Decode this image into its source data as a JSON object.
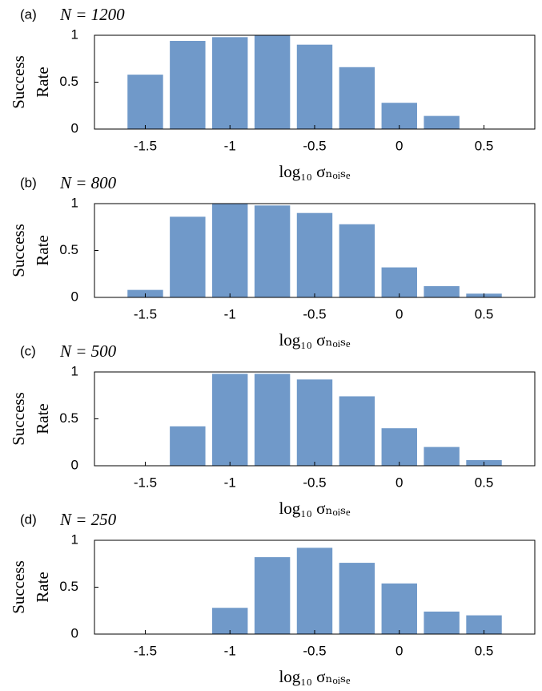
{
  "chart_data": [
    {
      "type": "bar",
      "panel_label": "(a)",
      "title": "N = 1200",
      "xlabel": "log₁₀ σₙₒᵢₛₑ",
      "ylabel": [
        "Success",
        "Rate"
      ],
      "x": [
        -1.5,
        -1.25,
        -1,
        -0.75,
        -0.5,
        -0.25,
        0,
        0.25,
        0.5
      ],
      "values": [
        0.58,
        0.94,
        0.98,
        1.0,
        0.9,
        0.66,
        0.28,
        0.14,
        0
      ],
      "color": "#7099c9",
      "xlim": [
        -1.8,
        0.8
      ],
      "xticks": [
        -1.5,
        -1,
        -0.5,
        0,
        0.5
      ],
      "ylim": [
        0,
        1
      ],
      "yticks": [
        0,
        0.5,
        1
      ]
    },
    {
      "type": "bar",
      "panel_label": "(b)",
      "title": "N = 800",
      "xlabel": "log₁₀ σₙₒᵢₛₑ",
      "ylabel": [
        "Success",
        "Rate"
      ],
      "x": [
        -1.5,
        -1.25,
        -1,
        -0.75,
        -0.5,
        -0.25,
        0,
        0.25,
        0.5
      ],
      "values": [
        0.08,
        0.86,
        1.0,
        0.98,
        0.9,
        0.78,
        0.32,
        0.12,
        0.04
      ],
      "color": "#7099c9",
      "xlim": [
        -1.8,
        0.8
      ],
      "xticks": [
        -1.5,
        -1,
        -0.5,
        0,
        0.5
      ],
      "ylim": [
        0,
        1
      ],
      "yticks": [
        0,
        0.5,
        1
      ]
    },
    {
      "type": "bar",
      "panel_label": "(c)",
      "title": "N = 500",
      "xlabel": "log₁₀ σₙₒᵢₛₑ",
      "ylabel": [
        "Success",
        "Rate"
      ],
      "x": [
        -1.5,
        -1.25,
        -1,
        -0.75,
        -0.5,
        -0.25,
        0,
        0.25,
        0.5
      ],
      "values": [
        0,
        0.42,
        0.98,
        0.98,
        0.92,
        0.74,
        0.4,
        0.2,
        0.06
      ],
      "color": "#7099c9",
      "xlim": [
        -1.8,
        0.8
      ],
      "xticks": [
        -1.5,
        -1,
        -0.5,
        0,
        0.5
      ],
      "ylim": [
        0,
        1
      ],
      "yticks": [
        0,
        0.5,
        1
      ]
    },
    {
      "type": "bar",
      "panel_label": "(d)",
      "title": "N = 250",
      "xlabel": "log₁₀ σₙₒᵢₛₑ",
      "ylabel": [
        "Success",
        "Rate"
      ],
      "x": [
        -1.5,
        -1.25,
        -1,
        -0.75,
        -0.5,
        -0.25,
        0,
        0.25,
        0.5
      ],
      "values": [
        0,
        0,
        0.28,
        0.82,
        0.92,
        0.76,
        0.54,
        0.24,
        0.2
      ],
      "color": "#7099c9",
      "xlim": [
        -1.8,
        0.8
      ],
      "xticks": [
        -1.5,
        -1,
        -0.5,
        0,
        0.5
      ],
      "ylim": [
        0,
        1
      ],
      "yticks": [
        0,
        0.5,
        1
      ]
    }
  ]
}
